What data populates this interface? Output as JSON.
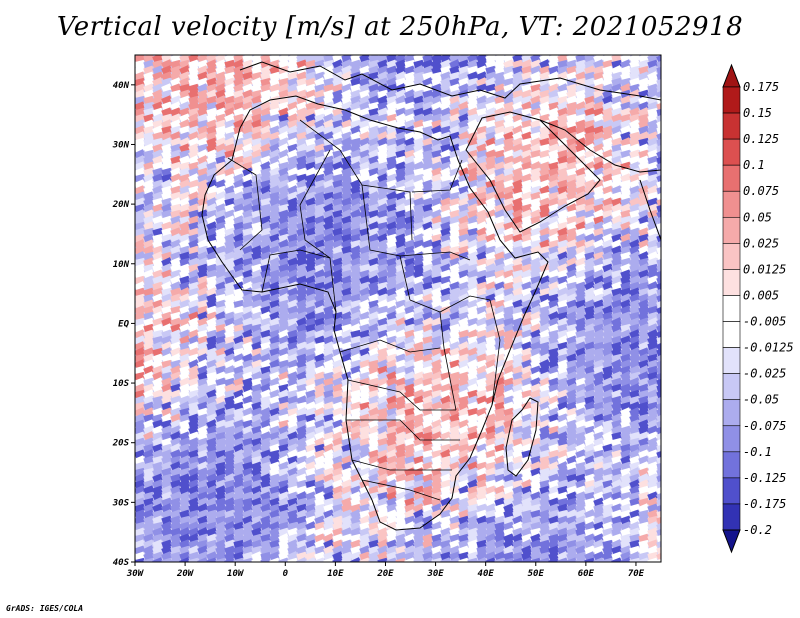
{
  "title": "Vertical velocity [m/s] at 250hPa, VT: 2021052918",
  "credit": "GrADS: IGES/COLA",
  "map": {
    "variable": "Vertical velocity",
    "units": "m/s",
    "level": "250hPa",
    "valid_time": "2021052918",
    "lon_range": [
      -30,
      75
    ],
    "lat_range": [
      -40,
      45
    ],
    "x_ticks": [
      {
        "lon": -30,
        "label": "30W"
      },
      {
        "lon": -20,
        "label": "20W"
      },
      {
        "lon": -10,
        "label": "10W"
      },
      {
        "lon": 0,
        "label": "0"
      },
      {
        "lon": 10,
        "label": "10E"
      },
      {
        "lon": 20,
        "label": "20E"
      },
      {
        "lon": 30,
        "label": "30E"
      },
      {
        "lon": 40,
        "label": "40E"
      },
      {
        "lon": 50,
        "label": "50E"
      },
      {
        "lon": 60,
        "label": "60E"
      },
      {
        "lon": 70,
        "label": "70E"
      }
    ],
    "y_ticks": [
      {
        "lat": 40,
        "label": "40N"
      },
      {
        "lat": 30,
        "label": "30N"
      },
      {
        "lat": 20,
        "label": "20N"
      },
      {
        "lat": 10,
        "label": "10N"
      },
      {
        "lat": 0,
        "label": "EQ"
      },
      {
        "lat": -10,
        "label": "10S"
      },
      {
        "lat": -20,
        "label": "20S"
      },
      {
        "lat": -30,
        "label": "30S"
      },
      {
        "lat": -40,
        "label": "40S"
      }
    ]
  },
  "colorbar": {
    "levels": [
      {
        "label": "0.175",
        "color": "#b01a1a"
      },
      {
        "label": "0.15",
        "color": "#c83232"
      },
      {
        "label": "0.125",
        "color": "#dc5050"
      },
      {
        "label": "0.1",
        "color": "#e87070"
      },
      {
        "label": "0.075",
        "color": "#f09090"
      },
      {
        "label": "0.05",
        "color": "#f5aaaa"
      },
      {
        "label": "0.025",
        "color": "#fac4c4"
      },
      {
        "label": "0.0125",
        "color": "#fde0e0"
      },
      {
        "label": "0.005",
        "color": "#ffffff"
      },
      {
        "label": "-0.005",
        "color": "#ffffff"
      },
      {
        "label": "-0.0125",
        "color": "#e2e2fb"
      },
      {
        "label": "-0.025",
        "color": "#c8c8f5"
      },
      {
        "label": "-0.05",
        "color": "#acacee"
      },
      {
        "label": "-0.075",
        "color": "#9090e6"
      },
      {
        "label": "-0.1",
        "color": "#7272dc"
      },
      {
        "label": "-0.125",
        "color": "#5050cc"
      },
      {
        "label": "-0.175",
        "color": "#3232b4"
      },
      {
        "label": "-0.2",
        "color": "#1e1e96"
      }
    ],
    "top_arrow_color": "#a01414",
    "bottom_arrow_color": "#14148c"
  }
}
